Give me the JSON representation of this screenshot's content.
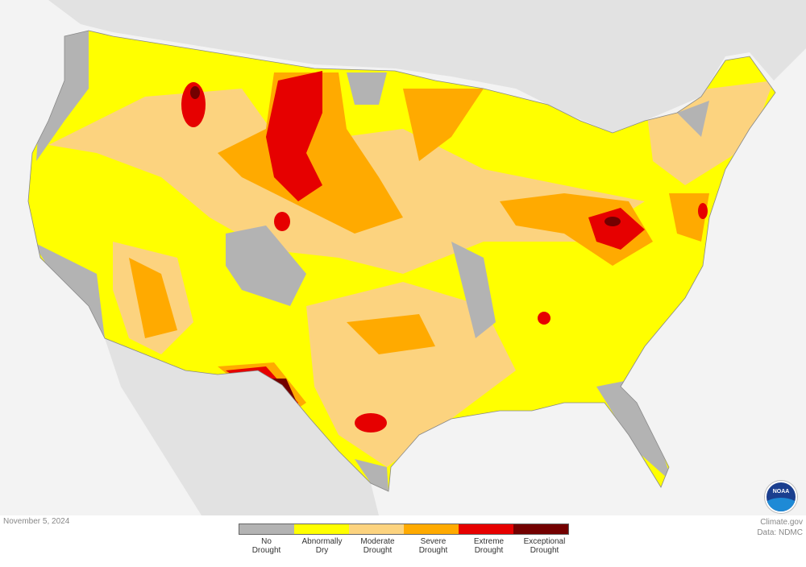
{
  "date": "November 5, 2024",
  "credit": {
    "line1": "Climate.gov",
    "line2": "Data: NDMC"
  },
  "logo": {
    "text": "NOAA"
  },
  "legend": [
    {
      "label1": "No",
      "label2": "Drought",
      "color": "#b3b3b3"
    },
    {
      "label1": "Abnormally",
      "label2": "Dry",
      "color": "#ffff00"
    },
    {
      "label1": "Moderate",
      "label2": "Drought",
      "color": "#fcd37f"
    },
    {
      "label1": "Severe",
      "label2": "Drought",
      "color": "#ffaa00"
    },
    {
      "label1": "Extreme",
      "label2": "Drought",
      "color": "#e60000"
    },
    {
      "label1": "Exceptional",
      "label2": "Drought",
      "color": "#730000"
    }
  ]
}
